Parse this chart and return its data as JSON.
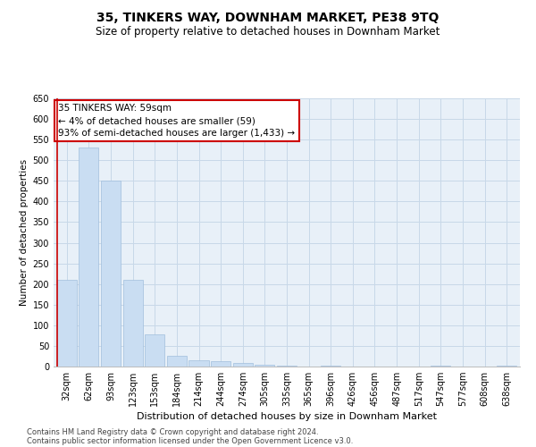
{
  "title1": "35, TINKERS WAY, DOWNHAM MARKET, PE38 9TQ",
  "title2": "Size of property relative to detached houses in Downham Market",
  "xlabel": "Distribution of detached houses by size in Downham Market",
  "ylabel": "Number of detached properties",
  "categories": [
    "32sqm",
    "62sqm",
    "93sqm",
    "123sqm",
    "153sqm",
    "184sqm",
    "214sqm",
    "244sqm",
    "274sqm",
    "305sqm",
    "335sqm",
    "365sqm",
    "396sqm",
    "426sqm",
    "456sqm",
    "487sqm",
    "517sqm",
    "547sqm",
    "577sqm",
    "608sqm",
    "638sqm"
  ],
  "values": [
    210,
    530,
    450,
    210,
    77,
    27,
    15,
    12,
    8,
    5,
    3,
    0,
    2,
    0,
    0,
    0,
    0,
    2,
    0,
    0,
    2
  ],
  "bar_color": "#c9ddf2",
  "bar_edge_color": "#a0bedd",
  "annotation_line1": "35 TINKERS WAY: 59sqm",
  "annotation_line2": "← 4% of detached houses are smaller (59)",
  "annotation_line3": "93% of semi-detached houses are larger (1,433) →",
  "vline_color": "#cc0000",
  "annotation_box_color": "#cc0000",
  "ylim": [
    0,
    650
  ],
  "yticks": [
    0,
    50,
    100,
    150,
    200,
    250,
    300,
    350,
    400,
    450,
    500,
    550,
    600,
    650
  ],
  "grid_color": "#c8d8e8",
  "background_color": "#e8f0f8",
  "footer1": "Contains HM Land Registry data © Crown copyright and database right 2024.",
  "footer2": "Contains public sector information licensed under the Open Government Licence v3.0.",
  "title1_fontsize": 10,
  "title2_fontsize": 8.5,
  "xlabel_fontsize": 8,
  "ylabel_fontsize": 7.5,
  "tick_fontsize": 7,
  "annotation_fontsize": 7.5,
  "footer_fontsize": 6
}
